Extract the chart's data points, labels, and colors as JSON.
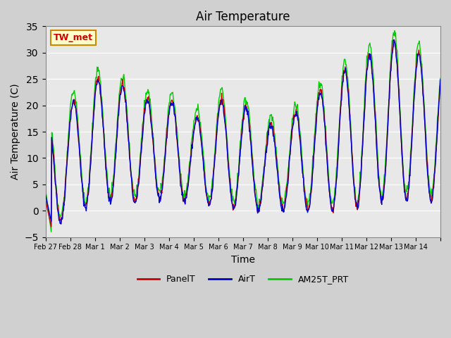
{
  "title": "Air Temperature",
  "xlabel": "Time",
  "ylabel": "Air Temperature (C)",
  "ylim": [
    -5,
    35
  ],
  "fig_bg_color": "#d0d0d0",
  "plot_bg_color": "#e8e8e8",
  "grid_color": "white",
  "line_colors": {
    "PanelT": "#cc0000",
    "AirT": "#0000cc",
    "AM25T_PRT": "#00cc00"
  },
  "annotation_text": "TW_met",
  "annotation_bg": "#ffffcc",
  "annotation_border": "#cc8800",
  "annotation_text_color": "#cc0000",
  "tick_labels": [
    "Feb 27",
    "Feb 28",
    "Mar 1",
    "Mar 2",
    "Mar 3",
    "Mar 4",
    "Mar 5",
    "Mar 6",
    "Mar 7",
    "Mar 8",
    "Mar 9",
    "Mar 10",
    "Mar 11",
    "Mar 12",
    "Mar 13",
    "Mar 14",
    ""
  ],
  "tick_positions": [
    0,
    1,
    2,
    3,
    4,
    5,
    6,
    7,
    8,
    9,
    10,
    11,
    12,
    13,
    14,
    15,
    16
  ],
  "yticks": [
    -5,
    0,
    5,
    10,
    15,
    20,
    25,
    30,
    35
  ],
  "n_days": 16,
  "pts_per_day": 48
}
